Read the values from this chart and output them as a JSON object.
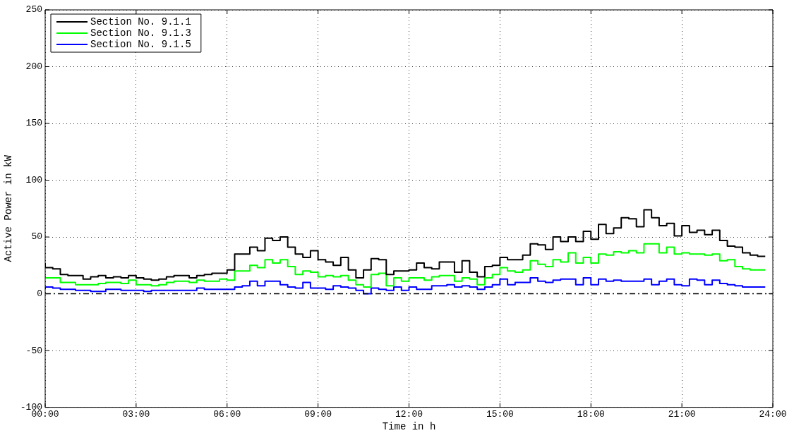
{
  "chart_data": {
    "type": "step",
    "xlabel": "Time in h",
    "ylabel": "Active Power in kW",
    "x": [
      0,
      0.25,
      0.5,
      0.75,
      1,
      1.25,
      1.5,
      1.75,
      2,
      2.25,
      2.5,
      2.75,
      3,
      3.25,
      3.5,
      3.75,
      4,
      4.25,
      4.5,
      4.75,
      5,
      5.25,
      5.5,
      5.75,
      6,
      6.25,
      6.5,
      6.75,
      7,
      7.25,
      7.5,
      7.75,
      8,
      8.25,
      8.5,
      8.75,
      9,
      9.25,
      9.5,
      9.75,
      10,
      10.25,
      10.5,
      10.75,
      11,
      11.25,
      11.5,
      11.75,
      12,
      12.25,
      12.5,
      12.75,
      13,
      13.25,
      13.5,
      13.75,
      14,
      14.25,
      14.5,
      14.75,
      15,
      15.25,
      15.5,
      15.75,
      16,
      16.25,
      16.5,
      16.75,
      17,
      17.25,
      17.5,
      17.75,
      18,
      18.25,
      18.5,
      18.75,
      19,
      19.25,
      19.5,
      19.75,
      20,
      20.25,
      20.5,
      20.75,
      21,
      21.25,
      21.5,
      21.75,
      22,
      22.25,
      22.5,
      22.75,
      23,
      23.25,
      23.5,
      23.75
    ],
    "series": [
      {
        "name": "Section No. 9.1.1",
        "color": "#000000",
        "values": [
          27,
          23,
          22,
          17,
          16,
          16,
          13,
          15,
          16,
          14,
          15,
          14,
          16,
          14,
          13,
          12,
          13,
          15,
          16,
          16,
          14,
          16,
          17,
          18,
          18,
          21,
          35,
          35,
          41,
          38,
          49,
          47,
          50,
          41,
          35,
          32,
          38,
          30,
          28,
          25,
          32,
          21,
          14,
          21,
          31,
          30,
          17,
          20,
          20,
          21,
          27,
          23,
          22,
          28,
          28,
          19,
          29,
          19,
          15,
          24,
          25,
          32,
          30,
          30,
          34,
          44,
          43,
          39,
          50,
          46,
          50,
          46,
          55,
          48,
          61,
          53,
          58,
          67,
          66,
          59,
          74,
          67,
          60,
          62,
          51,
          60,
          54,
          56,
          52,
          56,
          47,
          42,
          41,
          36,
          34,
          33
        ]
      },
      {
        "name": "Section No. 9.1.3",
        "color": "#00ff00",
        "values": [
          16,
          14,
          14,
          10,
          10,
          8,
          8,
          8,
          9,
          10,
          10,
          9,
          12,
          8,
          8,
          7,
          8,
          10,
          11,
          11,
          10,
          12,
          11,
          11,
          13,
          12,
          20,
          20,
          25,
          23,
          30,
          27,
          30,
          24,
          17,
          20,
          19,
          15,
          16,
          15,
          16,
          12,
          8,
          6,
          17,
          18,
          7,
          14,
          11,
          14,
          14,
          12,
          15,
          16,
          16,
          11,
          14,
          13,
          8,
          14,
          17,
          23,
          20,
          19,
          21,
          29,
          26,
          24,
          30,
          28,
          36,
          27,
          32,
          27,
          35,
          34,
          37,
          36,
          38,
          36,
          44,
          44,
          36,
          41,
          35,
          36,
          35,
          35,
          34,
          35,
          29,
          30,
          24,
          22,
          21,
          21
        ]
      },
      {
        "name": "Section No. 9.1.5",
        "color": "#0000ff",
        "values": [
          4,
          6,
          5,
          4,
          4,
          3,
          3,
          2,
          2,
          4,
          4,
          3,
          3,
          3,
          2,
          3,
          3,
          3,
          3,
          3,
          3,
          5,
          4,
          4,
          4,
          4,
          6,
          7,
          11,
          7,
          11,
          11,
          8,
          6,
          5,
          10,
          5,
          5,
          4,
          7,
          6,
          5,
          3,
          0,
          5,
          4,
          3,
          6,
          3,
          6,
          4,
          4,
          7,
          7,
          8,
          6,
          7,
          6,
          4,
          6,
          8,
          13,
          8,
          10,
          10,
          14,
          11,
          10,
          12,
          13,
          13,
          8,
          14,
          8,
          13,
          11,
          12,
          11,
          11,
          11,
          13,
          8,
          11,
          13,
          8,
          7,
          13,
          12,
          8,
          12,
          9,
          8,
          7,
          6,
          6,
          6
        ]
      }
    ],
    "xlim": [
      0,
      24
    ],
    "xticks": [
      {
        "value": 0,
        "label": "00:00"
      },
      {
        "value": 3,
        "label": "03:00"
      },
      {
        "value": 6,
        "label": "06:00"
      },
      {
        "value": 9,
        "label": "09:00"
      },
      {
        "value": 12,
        "label": "12:00"
      },
      {
        "value": 15,
        "label": "15:00"
      },
      {
        "value": 18,
        "label": "18:00"
      },
      {
        "value": 21,
        "label": "21:00"
      },
      {
        "value": 24,
        "label": "24:00"
      }
    ],
    "ylim": [
      -100,
      250
    ],
    "yticks": [
      -100,
      -50,
      0,
      50,
      100,
      150,
      200,
      250
    ],
    "ref_lines": [
      {
        "axis": "y",
        "value": 0,
        "color": "#000000",
        "line_style": "dashed"
      }
    ],
    "grid": true,
    "legend": "top left",
    "line_style": "solid",
    "marker": "none"
  }
}
